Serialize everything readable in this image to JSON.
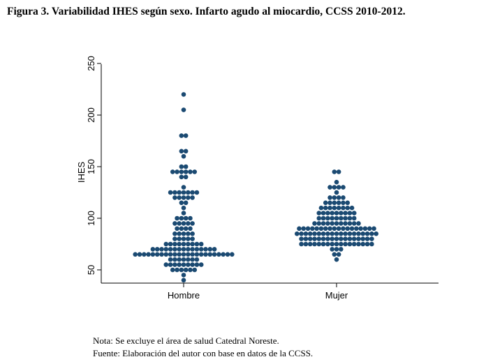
{
  "title": "Figura 3. Variabilidad IHES según sexo. Infarto agudo al miocardio, CCSS 2010-2012.",
  "notes": {
    "nota": "Nota: Se excluye el área de salud Catedral Noreste.",
    "fuente": "Fuente: Elaboración del autor con base en datos de la CCSS."
  },
  "dot_color": "#1b4a72",
  "chart_data": {
    "type": "scatter",
    "subtype": "beeswarm",
    "title": "",
    "xlabel": "",
    "ylabel": "IHES",
    "ylim": [
      45,
      255
    ],
    "yticks": [
      50,
      100,
      150,
      200,
      250
    ],
    "grid": false,
    "legend": "none",
    "categories": [
      "Hombre",
      "Mujer"
    ],
    "series": [
      {
        "category": "Hombre",
        "values": [
          40,
          45,
          51,
          51,
          51,
          51,
          51,
          51,
          56,
          56,
          56,
          56,
          56,
          56,
          56,
          56,
          56,
          61,
          61,
          61,
          61,
          61,
          61,
          61,
          66,
          66,
          66,
          66,
          66,
          66,
          66,
          66,
          66,
          66,
          66,
          66,
          66,
          66,
          66,
          66,
          66,
          66,
          66,
          66,
          66,
          66,
          66,
          71,
          71,
          71,
          71,
          71,
          71,
          71,
          71,
          71,
          71,
          71,
          71,
          71,
          71,
          71,
          76,
          76,
          76,
          76,
          76,
          76,
          76,
          76,
          76,
          81,
          81,
          81,
          81,
          81,
          86,
          86,
          86,
          86,
          86,
          91,
          91,
          91,
          91,
          96,
          96,
          96,
          96,
          96,
          101,
          101,
          101,
          101,
          107,
          112,
          117,
          117,
          122,
          122,
          122,
          122,
          122,
          127,
          127,
          127,
          127,
          127,
          127,
          127,
          132,
          142,
          142,
          147,
          147,
          147,
          147,
          147,
          147,
          152,
          152,
          162,
          167,
          167,
          178,
          178,
          204,
          219
        ]
      },
      {
        "category": "Mujer",
        "values": [
          62,
          67,
          67,
          72,
          72,
          72,
          77,
          77,
          77,
          77,
          77,
          77,
          77,
          77,
          77,
          77,
          77,
          77,
          77,
          77,
          77,
          77,
          77,
          82,
          82,
          82,
          82,
          82,
          82,
          82,
          82,
          82,
          82,
          82,
          82,
          82,
          82,
          82,
          82,
          82,
          87,
          87,
          87,
          87,
          87,
          87,
          87,
          87,
          87,
          87,
          87,
          87,
          87,
          87,
          87,
          87,
          87,
          87,
          87,
          92,
          92,
          92,
          92,
          92,
          92,
          92,
          92,
          92,
          92,
          92,
          92,
          92,
          92,
          92,
          92,
          92,
          92,
          97,
          97,
          97,
          97,
          97,
          97,
          97,
          97,
          97,
          97,
          97,
          102,
          102,
          102,
          102,
          102,
          102,
          102,
          102,
          102,
          107,
          107,
          107,
          107,
          107,
          107,
          107,
          107,
          107,
          112,
          112,
          112,
          112,
          112,
          112,
          112,
          112,
          117,
          117,
          117,
          117,
          117,
          117,
          122,
          122,
          122,
          122,
          127,
          132,
          132,
          132,
          132,
          137,
          147,
          147
        ]
      }
    ]
  }
}
